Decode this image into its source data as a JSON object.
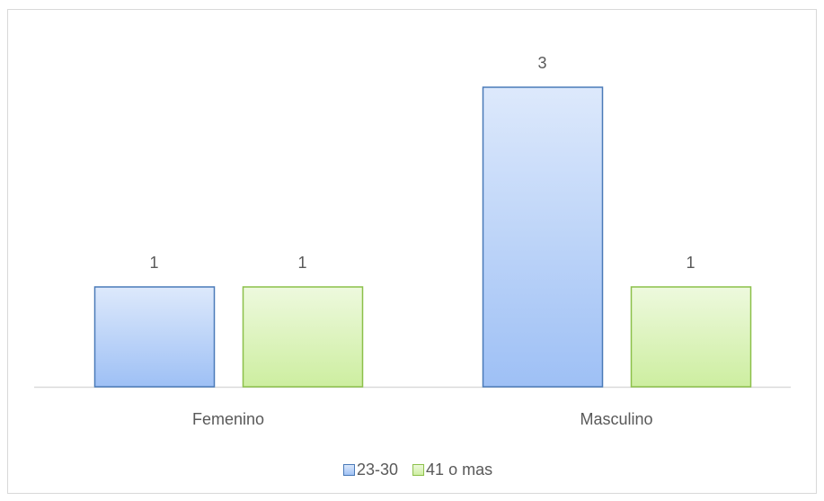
{
  "chart_data": {
    "type": "bar",
    "categories": [
      "Femenino",
      "Masculino"
    ],
    "series": [
      {
        "name": "23-30",
        "color": "#9ec0f5",
        "border_color": "#4a7ab8",
        "values": [
          1,
          3
        ]
      },
      {
        "name": "41 o mas",
        "color": "#cdeea0",
        "border_color": "#8cc04a",
        "values": [
          1,
          1
        ]
      }
    ],
    "data_labels": true,
    "legend": "bottom"
  }
}
